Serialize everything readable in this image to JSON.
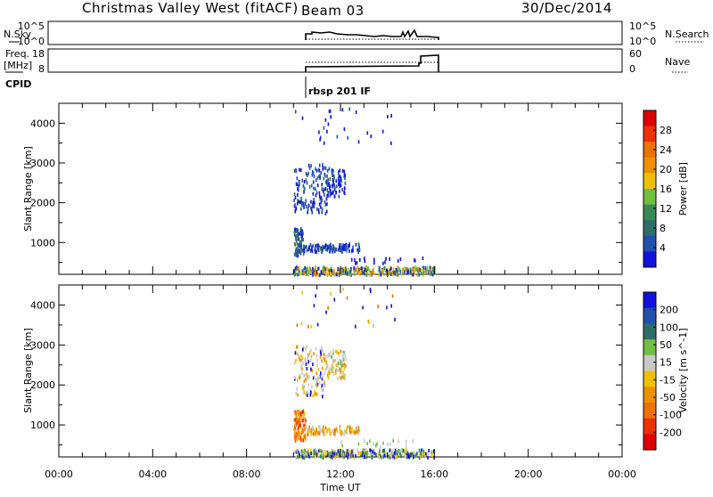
{
  "header": {
    "radar": "Christmas Valley West (fitACF)",
    "beam": "Beam 03",
    "date": "30/Dec/2014"
  },
  "status_panels": {
    "nsky_label": "N.Sky",
    "nsky_ticks": [
      "10^5",
      "10^0"
    ],
    "nsearch_label": "N.Search",
    "nsearch_ticks": [
      "10^5",
      "10^0"
    ],
    "freq_label_1": "Freq.",
    "freq_label_2": "[MHz]",
    "freq_ticks": [
      "18",
      "8"
    ],
    "nave_label": "Nave",
    "nave_ticks": [
      "60",
      "0"
    ],
    "cpid_label": "CPID",
    "cpid_value": "rbsp 201 IF"
  },
  "chart_data": [
    {
      "type": "heatmap",
      "name": "power",
      "ylabel": "Slant Range [km]",
      "xlim_hours": [
        0,
        24
      ],
      "ylim_km": [
        200,
        4500
      ],
      "yticks": [
        "1000",
        "2000",
        "3000",
        "4000"
      ],
      "colorbar_label": "Power [dB]",
      "colorbar_ticks": [
        "4",
        "8",
        "12",
        "16",
        "20",
        "24",
        "28"
      ],
      "colors": [
        "#1010e0",
        "#2050b0",
        "#2e6e6a",
        "#3a8a58",
        "#70c040",
        "#f0c000",
        "#f09000",
        "#f07000",
        "#f03000",
        "#e00000"
      ],
      "data_window_hours": [
        10.0,
        16.0
      ]
    },
    {
      "type": "heatmap",
      "name": "velocity",
      "ylabel": "Slant Range [km]",
      "xlabel": "Time UT",
      "xlim_hours": [
        0,
        24
      ],
      "ylim_km": [
        200,
        4500
      ],
      "yticks": [
        "1000",
        "2000",
        "3000",
        "4000"
      ],
      "xticks": [
        "00:00",
        "04:00",
        "08:00",
        "12:00",
        "16:00",
        "20:00",
        "00:00"
      ],
      "colorbar_label": "Velocity [m s^-1]",
      "colorbar_ticks": [
        "200",
        "100",
        "50",
        "15",
        "-15",
        "-50",
        "-100",
        "-200"
      ],
      "colors": [
        "#1010e0",
        "#2050b0",
        "#2e6e6a",
        "#70c040",
        "#c8c8c8",
        "#f0c000",
        "#f09000",
        "#f07000",
        "#f03000",
        "#e00000"
      ],
      "data_window_hours": [
        10.0,
        16.0
      ]
    }
  ]
}
